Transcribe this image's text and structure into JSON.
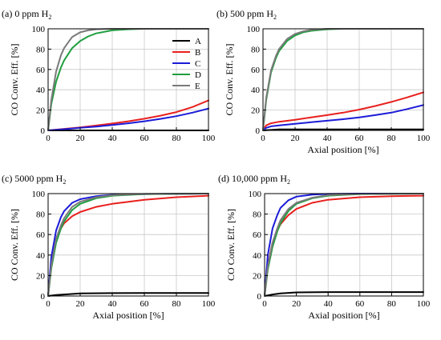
{
  "colors": {
    "A": "#000000",
    "B": "#e8201e",
    "C": "#1b1bd8",
    "D": "#1f9e3f",
    "E": "#7a7a7a"
  },
  "legend": [
    "A",
    "B",
    "C",
    "D",
    "E"
  ],
  "chart_data": [
    {
      "type": "line",
      "panel": "(a)",
      "title": "(a) 0 ppm H",
      "title_sub": "2",
      "xlabel": "",
      "ylabel": "CO Conv. Eff. [%]",
      "xlim": [
        0,
        100
      ],
      "ylim": [
        0,
        100
      ],
      "xticks": [
        0,
        20,
        40,
        60,
        80,
        100
      ],
      "yticks": [
        0,
        20,
        40,
        60,
        80,
        100
      ],
      "grid": true,
      "legend_position": "top-right",
      "series": [
        {
          "name": "A",
          "x": [
            0,
            100
          ],
          "y": [
            0,
            0
          ]
        },
        {
          "name": "B",
          "x": [
            0,
            10,
            20,
            30,
            40,
            50,
            60,
            70,
            80,
            90,
            100
          ],
          "y": [
            0,
            1.5,
            3,
            4.8,
            6.8,
            9,
            11.5,
            14.5,
            18,
            23,
            29.5
          ]
        },
        {
          "name": "C",
          "x": [
            0,
            10,
            20,
            30,
            40,
            50,
            60,
            70,
            80,
            90,
            100
          ],
          "y": [
            0,
            1.2,
            2.5,
            3.8,
            5.3,
            7,
            9,
            11.3,
            14,
            17.5,
            21.5
          ]
        },
        {
          "name": "D",
          "x": [
            0,
            2,
            5,
            8,
            10,
            15,
            20,
            25,
            30,
            40,
            50,
            60,
            80,
            100
          ],
          "y": [
            0,
            26,
            48,
            62,
            69,
            81,
            88,
            92.5,
            95.5,
            98.5,
            99.5,
            100,
            100,
            100
          ]
        },
        {
          "name": "E",
          "x": [
            0,
            2,
            5,
            8,
            10,
            15,
            20,
            25,
            30,
            40,
            60,
            100
          ],
          "y": [
            0,
            30,
            58,
            74,
            81,
            92,
            96.5,
            98.5,
            99.5,
            100,
            100,
            100
          ]
        }
      ]
    },
    {
      "type": "line",
      "panel": "(b)",
      "title": "(b) 500 ppm H",
      "title_sub": "2",
      "xlabel": "Axial position [%]",
      "ylabel": "CO Conv. Eff. [%]",
      "xlim": [
        0,
        100
      ],
      "ylim": [
        0,
        100
      ],
      "xticks": [
        0,
        20,
        40,
        60,
        80,
        100
      ],
      "yticks": [
        0,
        20,
        40,
        60,
        80,
        100
      ],
      "grid": true,
      "series": [
        {
          "name": "A",
          "x": [
            0,
            10,
            30,
            50,
            100
          ],
          "y": [
            0,
            1,
            1,
            1,
            1
          ]
        },
        {
          "name": "B",
          "x": [
            0,
            2,
            5,
            10,
            20,
            30,
            40,
            50,
            60,
            70,
            80,
            90,
            100
          ],
          "y": [
            0,
            5,
            7,
            8.5,
            10.5,
            12.8,
            15,
            17.5,
            20.5,
            24,
            28,
            32.5,
            37.5
          ]
        },
        {
          "name": "C",
          "x": [
            0,
            2,
            5,
            10,
            20,
            30,
            40,
            50,
            60,
            70,
            80,
            90,
            100
          ],
          "y": [
            0,
            2.5,
            4,
            5,
            6.5,
            8,
            9.5,
            11,
            12.8,
            15,
            17.5,
            21,
            25
          ]
        },
        {
          "name": "D",
          "x": [
            0,
            2,
            5,
            8,
            10,
            15,
            20,
            25,
            30,
            40,
            50,
            60,
            100
          ],
          "y": [
            0,
            30,
            57,
            71,
            78,
            88,
            93.5,
            96.5,
            98,
            99.5,
            100,
            100,
            100
          ]
        },
        {
          "name": "E",
          "x": [
            0,
            2,
            5,
            8,
            10,
            15,
            20,
            25,
            30,
            40,
            50,
            100
          ],
          "y": [
            0,
            32,
            59,
            73,
            80,
            90,
            95,
            97.5,
            99,
            100,
            100,
            100
          ]
        }
      ]
    },
    {
      "type": "line",
      "panel": "(c)",
      "title": "(c) 5000 ppm H",
      "title_sub": "2",
      "xlabel": "Axial position [%]",
      "ylabel": "CO Conv. Eff. [%]",
      "xlim": [
        0,
        100
      ],
      "ylim": [
        0,
        100
      ],
      "xticks": [
        0,
        20,
        40,
        60,
        80,
        100
      ],
      "yticks": [
        0,
        20,
        40,
        60,
        80,
        100
      ],
      "grid": true,
      "series": [
        {
          "name": "A",
          "x": [
            0,
            5,
            10,
            20,
            40,
            60,
            80,
            100
          ],
          "y": [
            0,
            1,
            1.5,
            2.5,
            2.8,
            3,
            3,
            3
          ]
        },
        {
          "name": "B",
          "x": [
            0,
            2,
            5,
            8,
            10,
            15,
            20,
            30,
            40,
            60,
            80,
            100
          ],
          "y": [
            0,
            32,
            55,
            66,
            71,
            78,
            82,
            87,
            90,
            94,
            96.5,
            98
          ]
        },
        {
          "name": "C",
          "x": [
            0,
            2,
            5,
            8,
            10,
            15,
            20,
            30,
            40,
            60,
            100
          ],
          "y": [
            0,
            38,
            64,
            77,
            83,
            91,
            94.5,
            97.5,
            98.8,
            99.5,
            100
          ]
        },
        {
          "name": "D",
          "x": [
            0,
            2,
            5,
            8,
            10,
            15,
            20,
            30,
            40,
            60,
            100
          ],
          "y": [
            0,
            27,
            52,
            66,
            73,
            84,
            90,
            95.5,
            98,
            99.5,
            100
          ]
        },
        {
          "name": "E",
          "x": [
            0,
            2,
            5,
            8,
            10,
            15,
            20,
            30,
            40,
            60,
            100
          ],
          "y": [
            0,
            30,
            56,
            69,
            76,
            87,
            92,
            96.5,
            98.5,
            99.7,
            100
          ]
        }
      ]
    },
    {
      "type": "line",
      "panel": "(d)",
      "title": "(d) 10,000 ppm H",
      "title_sub": "2",
      "xlabel": "Axial position [%]",
      "ylabel": "CO Conv. Eff. [%]",
      "xlim": [
        0,
        100
      ],
      "ylim": [
        0,
        100
      ],
      "xticks": [
        0,
        20,
        40,
        60,
        80,
        100
      ],
      "yticks": [
        0,
        20,
        40,
        60,
        80,
        100
      ],
      "grid": true,
      "series": [
        {
          "name": "A",
          "x": [
            0,
            5,
            10,
            20,
            40,
            60,
            80,
            100
          ],
          "y": [
            0,
            1.5,
            2.5,
            3.5,
            3.8,
            3.8,
            3.8,
            3.8
          ]
        },
        {
          "name": "B",
          "x": [
            0,
            2,
            5,
            8,
            10,
            15,
            20,
            30,
            40,
            60,
            80,
            100
          ],
          "y": [
            0,
            30,
            52,
            64,
            70,
            79,
            85,
            91,
            94,
            96.5,
            97.5,
            98
          ]
        },
        {
          "name": "C",
          "x": [
            0,
            2,
            5,
            8,
            10,
            15,
            20,
            30,
            40,
            60,
            100
          ],
          "y": [
            0,
            40,
            66,
            79,
            86,
            93.5,
            97,
            99,
            99.7,
            100,
            100
          ]
        },
        {
          "name": "D",
          "x": [
            0,
            2,
            5,
            8,
            10,
            15,
            20,
            30,
            40,
            60,
            100
          ],
          "y": [
            0,
            26,
            48,
            63,
            71,
            83,
            90,
            95.5,
            98,
            99.5,
            100
          ]
        },
        {
          "name": "E",
          "x": [
            0,
            2,
            5,
            8,
            10,
            15,
            20,
            30,
            40,
            60,
            100
          ],
          "y": [
            0,
            29,
            52,
            66,
            74,
            85,
            91,
            96,
            98.5,
            99.7,
            100
          ]
        }
      ]
    }
  ]
}
